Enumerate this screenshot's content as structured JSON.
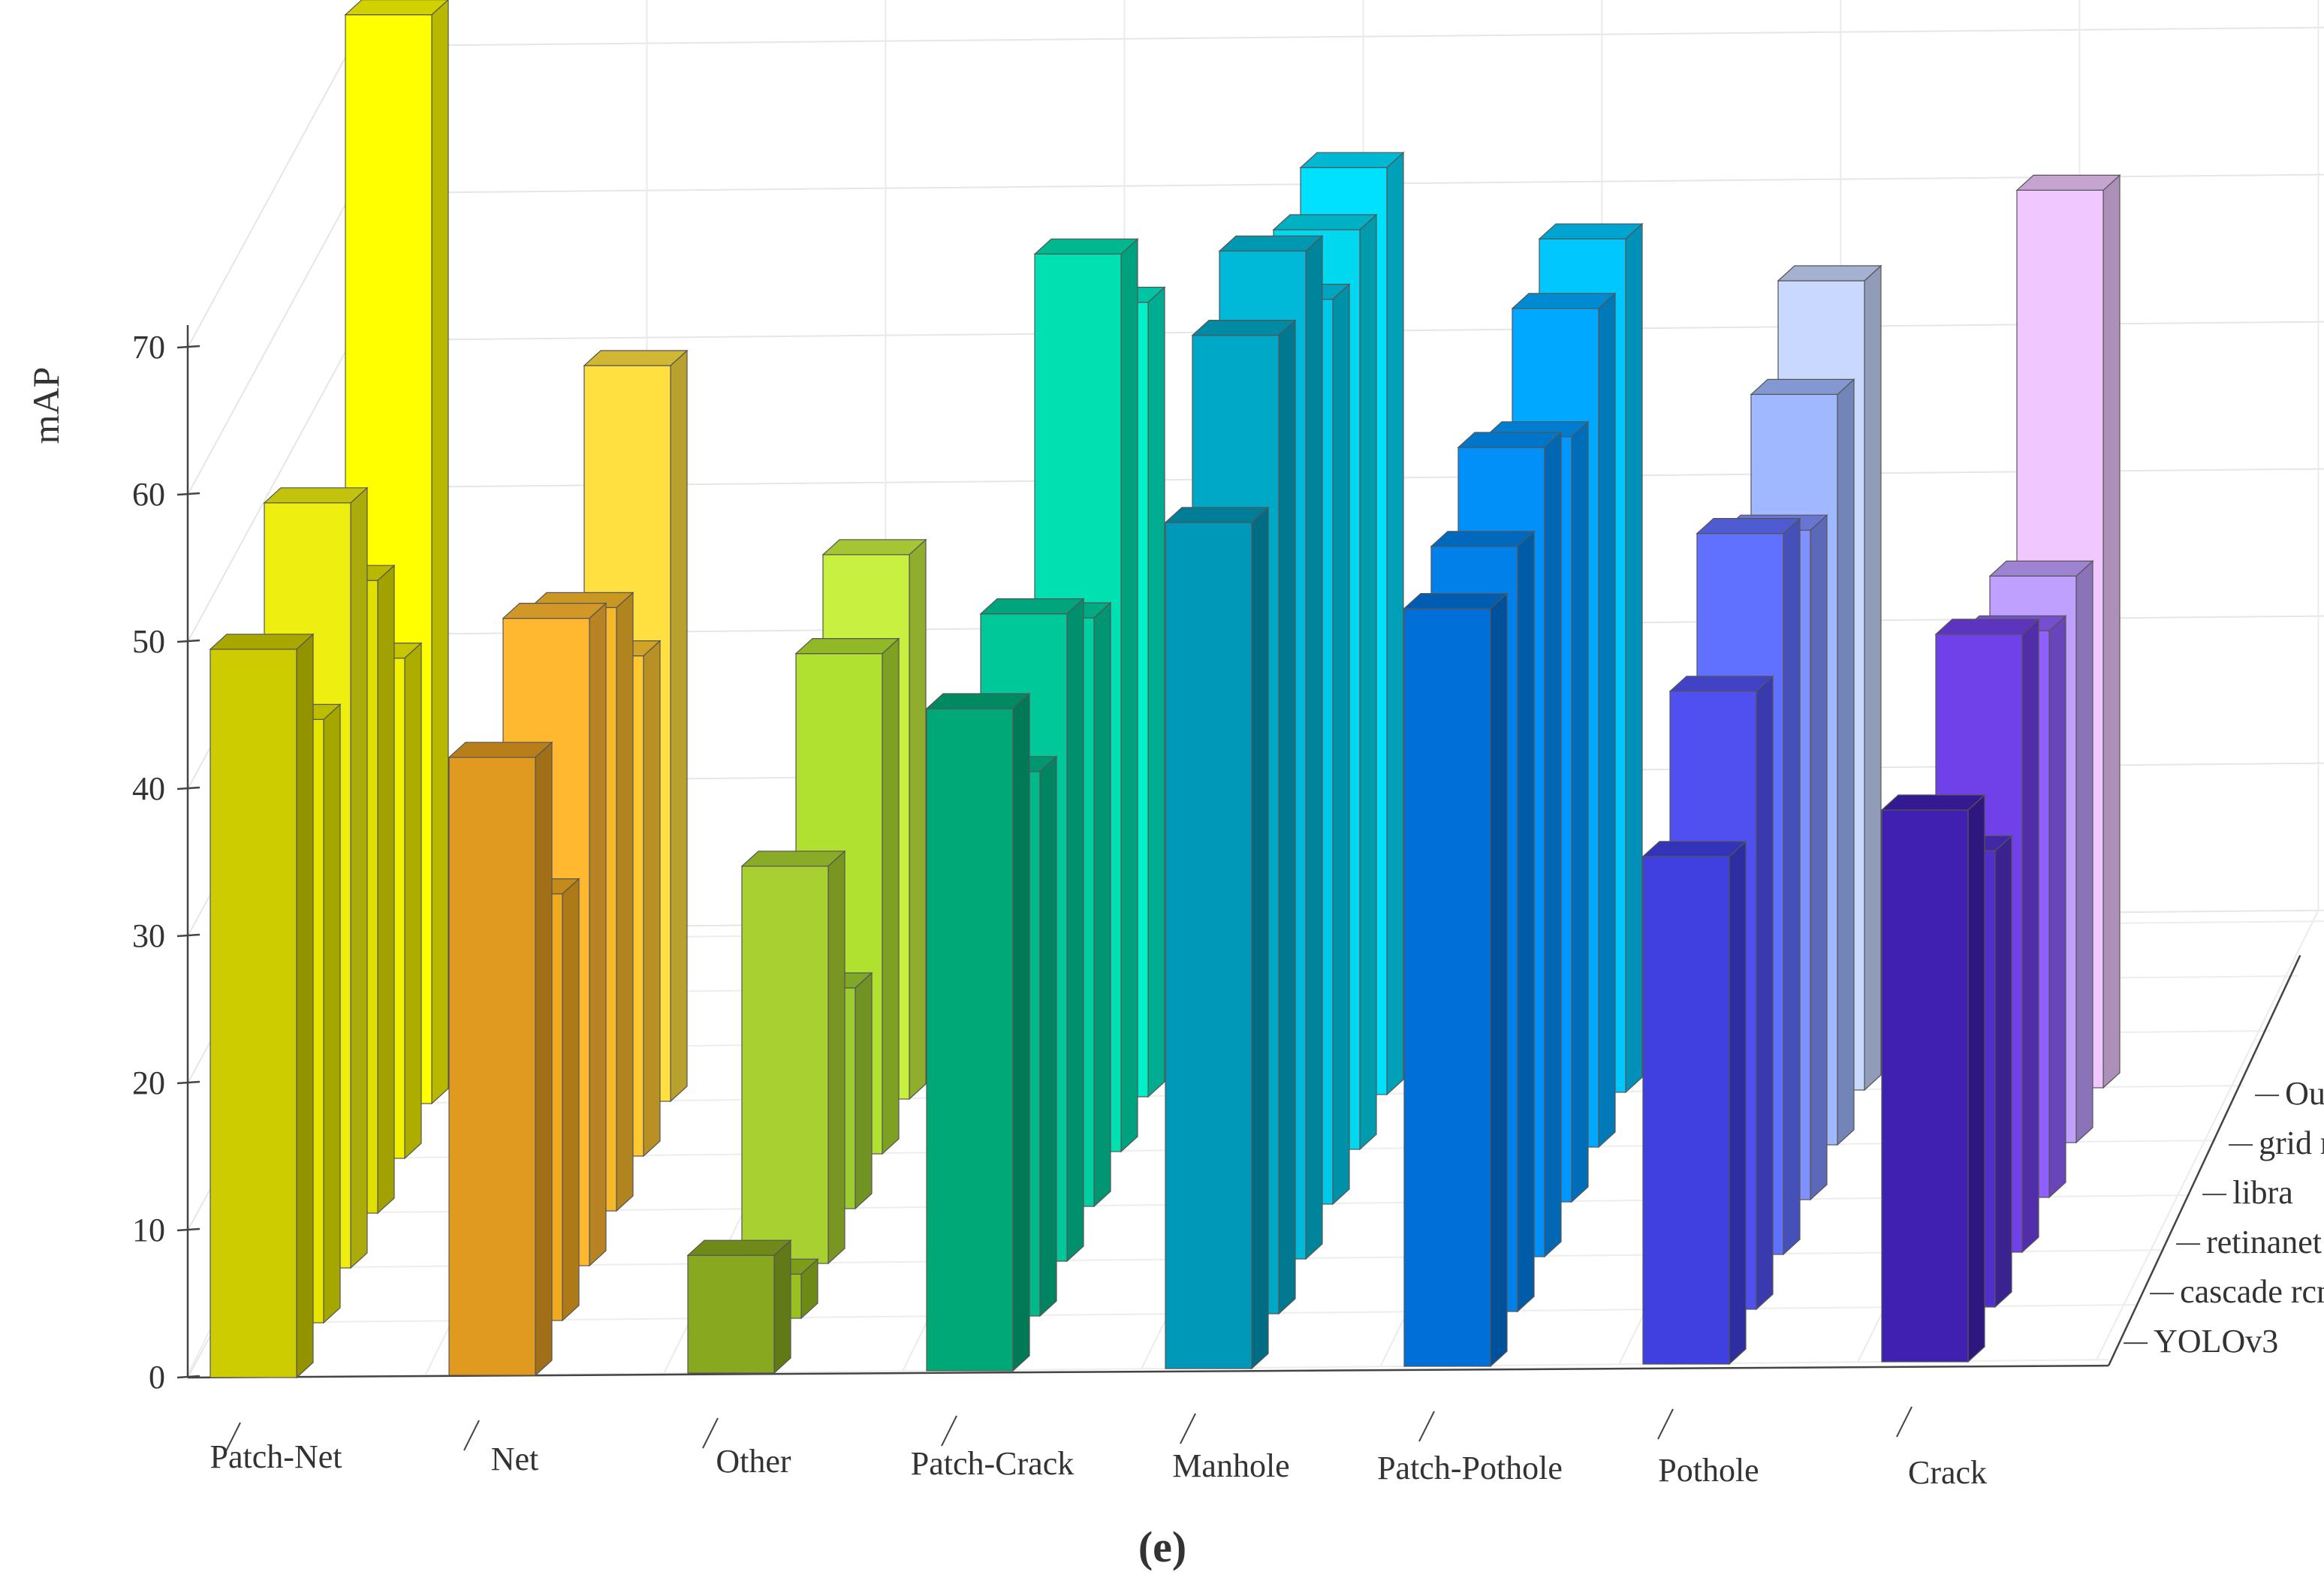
{
  "chart_data": {
    "type": "bar",
    "variant": "3d-grouped",
    "title": "",
    "caption": "(e)",
    "xlabel": "",
    "ylabel": "mAP",
    "ylim": [
      0,
      70
    ],
    "yticks": [
      0,
      10,
      20,
      30,
      40,
      50,
      60,
      70
    ],
    "grid": true,
    "categories": [
      "Patch-Net",
      "Net",
      "Other",
      "Patch-Crack",
      "Manhole",
      "Patch-Pothole",
      "Pothole",
      "Crack"
    ],
    "series": [
      {
        "name": "YOLOv3",
        "values": [
          49.5,
          42,
          8,
          45,
          57.5,
          51.5,
          34.5,
          37.5
        ]
      },
      {
        "name": "cascade rcnn",
        "values": [
          41,
          29,
          3,
          37,
          66.5,
          52,
          42,
          31
        ]
      },
      {
        "name": "retinanet",
        "values": [
          52,
          44,
          27,
          44,
          68.5,
          55,
          49,
          42
        ]
      },
      {
        "name": "libra",
        "values": [
          43,
          41,
          15,
          40,
          61.5,
          52,
          45.5,
          38.5
        ]
      },
      {
        "name": "grid rcnn",
        "values": [
          34,
          34,
          34,
          61,
          62.5,
          57,
          51,
          38.5
        ]
      },
      {
        "name": "Ours",
        "values": [
          74,
          50,
          37,
          54,
          63,
          58,
          55,
          61
        ]
      }
    ],
    "colors": [
      [
        "#cccc00",
        "#e6e600",
        "#eeee10",
        "#e0e000",
        "#f0f000",
        "#ffff00"
      ],
      [
        "#e09a20",
        "#f0aa20",
        "#ffb830",
        "#f5b82a",
        "#ffc830",
        "#ffe040"
      ],
      [
        "#88a820",
        "#98c020",
        "#a8d030",
        "#9ccc30",
        "#b0e030",
        "#c8f040"
      ],
      [
        "#00a878",
        "#00b888",
        "#00c898",
        "#00d0a0",
        "#00e0b0",
        "#00f0c8"
      ],
      [
        "#0098b8",
        "#00a8c8",
        "#00b8d8",
        "#00c8e8",
        "#00d8f0",
        "#00e0ff"
      ],
      [
        "#0070d8",
        "#0080e8",
        "#0090f8",
        "#0098ff",
        "#00a8ff",
        "#00c8ff"
      ],
      [
        "#4040e0",
        "#5050f0",
        "#6070ff",
        "#8090ff",
        "#a0b8ff",
        "#c8d8ff"
      ],
      [
        "#4020b0",
        "#5030c8",
        "#7040e8",
        "#9060ff",
        "#c0a0ff",
        "#f0c8ff"
      ]
    ]
  }
}
